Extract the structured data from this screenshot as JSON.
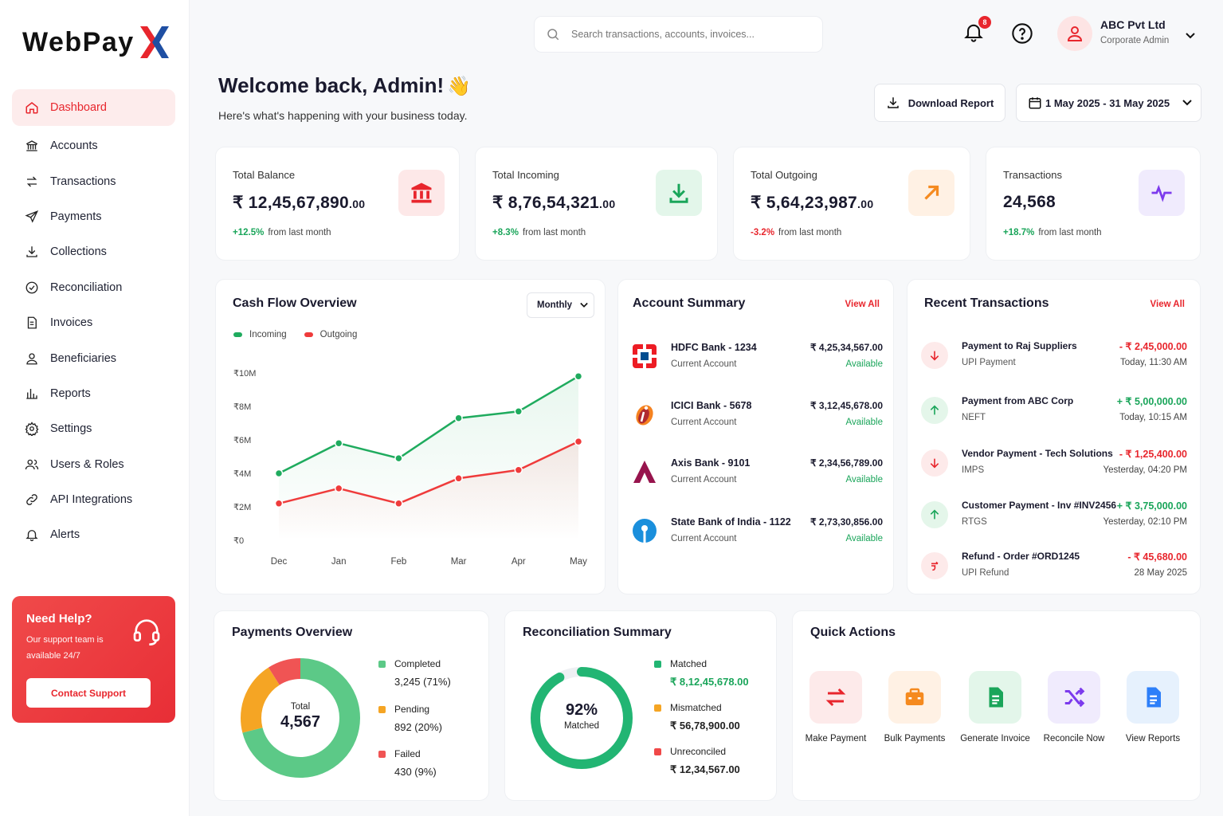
{
  "brand": {
    "name": "WebPay"
  },
  "nav": [
    {
      "label": "Dashboard",
      "icon": "home-icon",
      "active": true
    },
    {
      "label": "Accounts",
      "icon": "bank-icon"
    },
    {
      "label": "Transactions",
      "icon": "swap-icon"
    },
    {
      "label": "Payments",
      "icon": "send-icon"
    },
    {
      "label": "Collections",
      "icon": "download-icon"
    },
    {
      "label": "Reconciliation",
      "icon": "check-circle-icon"
    },
    {
      "label": "Invoices",
      "icon": "document-icon"
    },
    {
      "label": "Beneficiaries",
      "icon": "user-icon"
    },
    {
      "label": "Reports",
      "icon": "bar-chart-icon"
    },
    {
      "label": "Settings",
      "icon": "gear-icon"
    },
    {
      "label": "Users & Roles",
      "icon": "users-icon"
    },
    {
      "label": "API Integrations",
      "icon": "link-icon"
    },
    {
      "label": "Alerts",
      "icon": "bell-icon"
    }
  ],
  "help": {
    "title": "Need Help?",
    "text": "Our support team is available 24/7",
    "button": "Contact Support"
  },
  "search": {
    "placeholder": "Search transactions, accounts, invoices..."
  },
  "notifications": {
    "count": "8"
  },
  "user": {
    "name": "ABC Pvt Ltd",
    "role": "Corporate Admin"
  },
  "welcome": {
    "title": "Welcome back, Admin!",
    "emoji": "👋",
    "subtitle": "Here's what's happening with your business today."
  },
  "actions": {
    "download": "Download Report",
    "date_range": "1 May 2025 - 31 May 2025"
  },
  "stats": [
    {
      "label": "Total Balance",
      "value": "₹ 12,45,67,890",
      "decimals": ".00",
      "change": "+12.5%",
      "change_text": "from last month",
      "positive": true,
      "icon": "bank-icon"
    },
    {
      "label": "Total Incoming",
      "value": "₹ 8,76,54,321",
      "decimals": ".00",
      "change": "+8.3%",
      "change_text": "from last month",
      "positive": true,
      "icon": "download-icon"
    },
    {
      "label": "Total Outgoing",
      "value": "₹ 5,64,23,987",
      "decimals": ".00",
      "change": "-3.2%",
      "change_text": "from last month",
      "positive": false,
      "icon": "arrow-up-right-icon"
    },
    {
      "label": "Transactions",
      "value": "24,568",
      "decimals": "",
      "change": "+18.7%",
      "change_text": "from last month",
      "positive": true,
      "icon": "pulse-icon"
    }
  ],
  "cashflow": {
    "title": "Cash Flow Overview",
    "period": "Monthly",
    "legend_incoming": "Incoming",
    "legend_outgoing": "Outgoing"
  },
  "chart_data": {
    "type": "line",
    "title": "Cash Flow Overview",
    "categories": [
      "Dec",
      "Jan",
      "Feb",
      "Mar",
      "Apr",
      "May"
    ],
    "series": [
      {
        "name": "Incoming",
        "values": [
          4.0,
          5.8,
          4.9,
          7.3,
          7.7,
          9.8
        ],
        "color": "#1fab5e"
      },
      {
        "name": "Outgoing",
        "values": [
          2.2,
          3.1,
          2.2,
          3.7,
          4.2,
          5.9
        ],
        "color": "#ef3b3b"
      }
    ],
    "yticks": [
      "₹0",
      "₹2M",
      "₹4M",
      "₹6M",
      "₹8M",
      "₹10M"
    ],
    "ylim": [
      0,
      10
    ],
    "grid": false,
    "legend": "top-left"
  },
  "accounts": {
    "title": "Account Summary",
    "view_all": "View All",
    "items": [
      {
        "name": "HDFC Bank - 1234",
        "type": "Current Account",
        "amount": "₹ 4,25,34,567.00",
        "status": "Available"
      },
      {
        "name": "ICICI Bank - 5678",
        "type": "Current Account",
        "amount": "₹ 3,12,45,678.00",
        "status": "Available"
      },
      {
        "name": "Axis Bank - 9101",
        "type": "Current Account",
        "amount": "₹ 2,34,56,789.00",
        "status": "Available"
      },
      {
        "name": "State Bank of India - 1122",
        "type": "Current Account",
        "amount": "₹ 2,73,30,856.00",
        "status": "Available"
      }
    ]
  },
  "recent": {
    "title": "Recent Transactions",
    "view_all": "View All",
    "items": [
      {
        "name": "Payment to Raj Suppliers",
        "method": "UPI Payment",
        "amount": "- ₹ 2,45,000.00",
        "time": "Today, 11:30 AM",
        "dir": "out"
      },
      {
        "name": "Payment from ABC Corp",
        "method": "NEFT",
        "amount": "+ ₹ 5,00,000.00",
        "time": "Today, 10:15 AM",
        "dir": "in"
      },
      {
        "name": "Vendor Payment - Tech Solutions",
        "method": "IMPS",
        "amount": "- ₹ 1,25,400.00",
        "time": "Yesterday, 04:20 PM",
        "dir": "out"
      },
      {
        "name": "Customer Payment - Inv #INV2456",
        "method": "RTGS",
        "amount": "+ ₹ 3,75,000.00",
        "time": "Yesterday, 02:10 PM",
        "dir": "in"
      },
      {
        "name": "Refund - Order #ORD1245",
        "method": "UPI Refund",
        "amount": "- ₹ 45,680.00",
        "time": "28 May 2025",
        "dir": "refund"
      }
    ]
  },
  "payments": {
    "title": "Payments Overview",
    "total_label": "Total",
    "total": "4,567",
    "segments": [
      {
        "label": "Completed",
        "value": "3,245 (71%)",
        "fraction": 0.71,
        "color": "#5cc987"
      },
      {
        "label": "Pending",
        "value": "892 (20%)",
        "fraction": 0.2,
        "color": "#f5a524"
      },
      {
        "label": "Failed",
        "value": "430 (9%)",
        "fraction": 0.09,
        "color": "#f05454"
      }
    ]
  },
  "recon": {
    "title": "Reconciliation Summary",
    "percent": "92%",
    "percent_label": "Matched",
    "fraction": 0.92,
    "items": [
      {
        "label": "Matched",
        "value": "₹ 8,12,45,678.00",
        "color": "#22b573"
      },
      {
        "label": "Mismatched",
        "value": "₹ 56,78,900.00",
        "color": "#f5a524"
      },
      {
        "label": "Unreconciled",
        "value": "₹ 12,34,567.00",
        "color": "#f04848"
      }
    ]
  },
  "quick": {
    "title": "Quick Actions",
    "items": [
      {
        "label": "Make Payment",
        "icon": "transfer-icon"
      },
      {
        "label": "Bulk Payments",
        "icon": "briefcase-icon"
      },
      {
        "label": "Generate Invoice",
        "icon": "invoice-icon"
      },
      {
        "label": "Reconcile Now",
        "icon": "shuffle-icon"
      },
      {
        "label": "View Reports",
        "icon": "report-icon"
      }
    ]
  }
}
